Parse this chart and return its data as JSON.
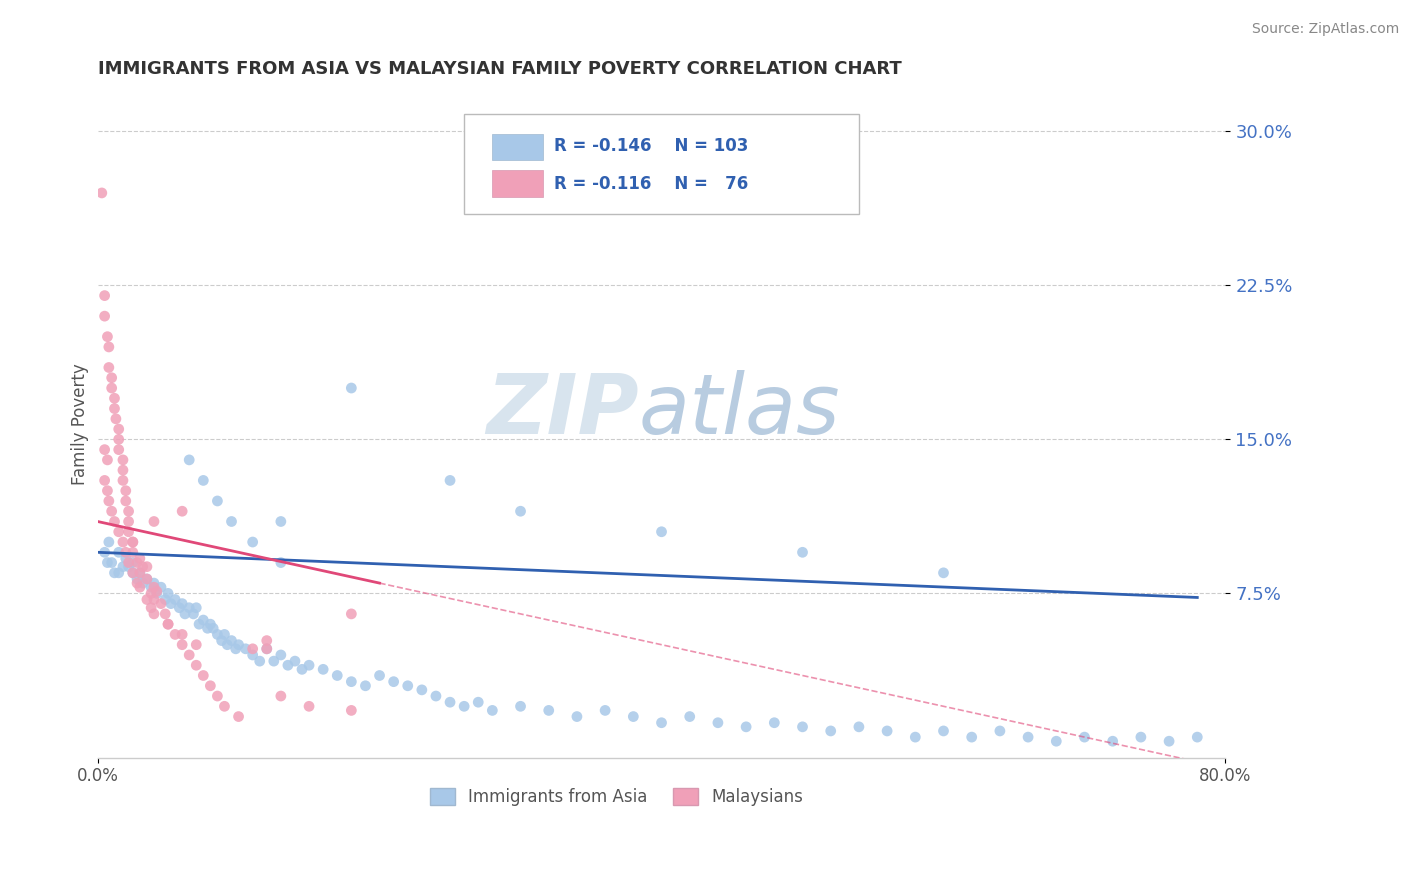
{
  "title": "IMMIGRANTS FROM ASIA VS MALAYSIAN FAMILY POVERTY CORRELATION CHART",
  "source": "Source: ZipAtlas.com",
  "ylabel": "Family Poverty",
  "color_blue": "#a8c8e8",
  "color_pink": "#f0a0b8",
  "line_blue": "#3060b0",
  "line_pink": "#e04878",
  "line_dash": "#e8a0b8",
  "watermark": "ZIPatlas",
  "watermark_color": "#d0dce8",
  "label1": "Immigrants from Asia",
  "label2": "Malaysians",
  "xlim": [
    0.0,
    0.8
  ],
  "ylim": [
    -0.005,
    0.32
  ],
  "ytick_vals": [
    0.075,
    0.15,
    0.225,
    0.3
  ],
  "ytick_labels": [
    "7.5%",
    "15.0%",
    "22.5%",
    "30.0%"
  ],
  "xtick_vals": [
    0.0,
    0.8
  ],
  "xtick_labels": [
    "0.0%",
    "80.0%"
  ],
  "blue_x": [
    0.005,
    0.007,
    0.008,
    0.01,
    0.012,
    0.015,
    0.015,
    0.018,
    0.02,
    0.022,
    0.025,
    0.025,
    0.028,
    0.03,
    0.032,
    0.035,
    0.038,
    0.04,
    0.042,
    0.045,
    0.048,
    0.05,
    0.052,
    0.055,
    0.058,
    0.06,
    0.062,
    0.065,
    0.068,
    0.07,
    0.072,
    0.075,
    0.078,
    0.08,
    0.082,
    0.085,
    0.088,
    0.09,
    0.092,
    0.095,
    0.098,
    0.1,
    0.105,
    0.11,
    0.115,
    0.12,
    0.125,
    0.13,
    0.135,
    0.14,
    0.145,
    0.15,
    0.16,
    0.17,
    0.18,
    0.19,
    0.2,
    0.21,
    0.22,
    0.23,
    0.24,
    0.25,
    0.26,
    0.27,
    0.28,
    0.3,
    0.32,
    0.34,
    0.36,
    0.38,
    0.4,
    0.42,
    0.44,
    0.46,
    0.48,
    0.5,
    0.52,
    0.54,
    0.56,
    0.58,
    0.6,
    0.62,
    0.64,
    0.66,
    0.68,
    0.7,
    0.72,
    0.74,
    0.76,
    0.78,
    0.13,
    0.18,
    0.25,
    0.3,
    0.4,
    0.5,
    0.6,
    0.065,
    0.075,
    0.085,
    0.095,
    0.11,
    0.13
  ],
  "blue_y": [
    0.095,
    0.09,
    0.1,
    0.09,
    0.085,
    0.095,
    0.085,
    0.088,
    0.092,
    0.088,
    0.085,
    0.09,
    0.082,
    0.085,
    0.08,
    0.082,
    0.078,
    0.08,
    0.075,
    0.078,
    0.072,
    0.075,
    0.07,
    0.072,
    0.068,
    0.07,
    0.065,
    0.068,
    0.065,
    0.068,
    0.06,
    0.062,
    0.058,
    0.06,
    0.058,
    0.055,
    0.052,
    0.055,
    0.05,
    0.052,
    0.048,
    0.05,
    0.048,
    0.045,
    0.042,
    0.048,
    0.042,
    0.045,
    0.04,
    0.042,
    0.038,
    0.04,
    0.038,
    0.035,
    0.032,
    0.03,
    0.035,
    0.032,
    0.03,
    0.028,
    0.025,
    0.022,
    0.02,
    0.022,
    0.018,
    0.02,
    0.018,
    0.015,
    0.018,
    0.015,
    0.012,
    0.015,
    0.012,
    0.01,
    0.012,
    0.01,
    0.008,
    0.01,
    0.008,
    0.005,
    0.008,
    0.005,
    0.008,
    0.005,
    0.003,
    0.005,
    0.003,
    0.005,
    0.003,
    0.005,
    0.11,
    0.175,
    0.13,
    0.115,
    0.105,
    0.095,
    0.085,
    0.14,
    0.13,
    0.12,
    0.11,
    0.1,
    0.09
  ],
  "pink_x": [
    0.003,
    0.005,
    0.005,
    0.007,
    0.008,
    0.008,
    0.01,
    0.01,
    0.012,
    0.012,
    0.013,
    0.015,
    0.015,
    0.015,
    0.018,
    0.018,
    0.018,
    0.02,
    0.02,
    0.022,
    0.022,
    0.022,
    0.025,
    0.025,
    0.025,
    0.028,
    0.03,
    0.03,
    0.032,
    0.035,
    0.035,
    0.038,
    0.04,
    0.04,
    0.042,
    0.045,
    0.048,
    0.05,
    0.055,
    0.06,
    0.065,
    0.07,
    0.075,
    0.08,
    0.085,
    0.09,
    0.1,
    0.11,
    0.12,
    0.13,
    0.15,
    0.18,
    0.005,
    0.007,
    0.008,
    0.01,
    0.012,
    0.015,
    0.018,
    0.02,
    0.022,
    0.025,
    0.028,
    0.03,
    0.035,
    0.038,
    0.04,
    0.05,
    0.06,
    0.07,
    0.12,
    0.18,
    0.04,
    0.06,
    0.005,
    0.007
  ],
  "pink_y": [
    0.27,
    0.22,
    0.21,
    0.2,
    0.195,
    0.185,
    0.18,
    0.175,
    0.17,
    0.165,
    0.16,
    0.155,
    0.15,
    0.145,
    0.14,
    0.135,
    0.13,
    0.125,
    0.12,
    0.115,
    0.11,
    0.105,
    0.1,
    0.095,
    0.1,
    0.09,
    0.085,
    0.092,
    0.088,
    0.082,
    0.088,
    0.075,
    0.078,
    0.072,
    0.076,
    0.07,
    0.065,
    0.06,
    0.055,
    0.05,
    0.045,
    0.04,
    0.035,
    0.03,
    0.025,
    0.02,
    0.015,
    0.048,
    0.052,
    0.025,
    0.02,
    0.018,
    0.13,
    0.125,
    0.12,
    0.115,
    0.11,
    0.105,
    0.1,
    0.095,
    0.09,
    0.085,
    0.08,
    0.078,
    0.072,
    0.068,
    0.065,
    0.06,
    0.055,
    0.05,
    0.048,
    0.065,
    0.11,
    0.115,
    0.145,
    0.14
  ]
}
